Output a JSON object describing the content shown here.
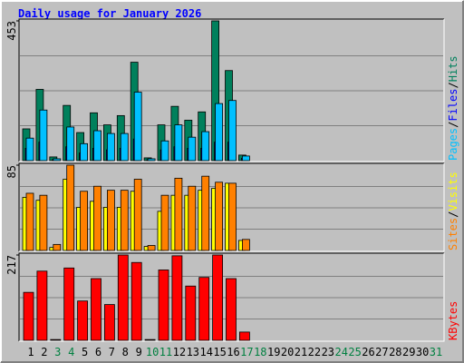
{
  "chart_data": [
    {
      "type": "bar",
      "title": "Daily usage for January 2026",
      "series": [
        {
          "name": "Hits",
          "color": "#00805c",
          "values": [
            103,
            231,
            12,
            179,
            91,
            155,
            116,
            146,
            319,
            9,
            116,
            176,
            131,
            158,
            453,
            292,
            18,
            null,
            null,
            null,
            null,
            null,
            null,
            null,
            null,
            null,
            null,
            null,
            null,
            null,
            null
          ]
        },
        {
          "name": "Files",
          "color": "#0000ff",
          "values": [
            40,
            60,
            3,
            45,
            25,
            40,
            35,
            40,
            70,
            3,
            35,
            45,
            40,
            40,
            60,
            60,
            8,
            null,
            null,
            null,
            null,
            null,
            null,
            null,
            null,
            null,
            null,
            null,
            null,
            null,
            null
          ]
        },
        {
          "name": "Pages",
          "color": "#00c0ff",
          "values": [
            73,
            164,
            6,
            109,
            55,
            97,
            88,
            88,
            222,
            6,
            64,
            116,
            76,
            94,
            185,
            195,
            15,
            null,
            null,
            null,
            null,
            null,
            null,
            null,
            null,
            null,
            null,
            null,
            null,
            null,
            null
          ]
        }
      ],
      "legend_separator": "/",
      "ylim": [
        0,
        453
      ],
      "yticks": [
        453
      ]
    },
    {
      "type": "bar",
      "series": [
        {
          "name": "Visits",
          "color": "#ffff00",
          "values": [
            53,
            50,
            3,
            71,
            43,
            49,
            43,
            43,
            59,
            4,
            39,
            55,
            55,
            60,
            62,
            67,
            10,
            null,
            null,
            null,
            null,
            null,
            null,
            null,
            null,
            null,
            null,
            null,
            null,
            null,
            null
          ]
        },
        {
          "name": "Sites",
          "color": "#ff8000",
          "values": [
            57,
            55,
            6,
            85,
            59,
            64,
            60,
            60,
            71,
            5,
            55,
            72,
            64,
            74,
            68,
            67,
            11,
            null,
            null,
            null,
            null,
            null,
            null,
            null,
            null,
            null,
            null,
            null,
            null,
            null,
            null
          ]
        }
      ],
      "legend_separator": "/",
      "ylim": [
        0,
        85
      ],
      "yticks": [
        85
      ]
    },
    {
      "type": "bar",
      "categories": [
        "1",
        "2",
        "3",
        "4",
        "5",
        "6",
        "7",
        "8",
        "9",
        "10",
        "11",
        "12",
        "13",
        "14",
        "15",
        "16",
        "17",
        "18",
        "19",
        "20",
        "21",
        "22",
        "23",
        "24",
        "25",
        "26",
        "27",
        "28",
        "29",
        "30",
        "31"
      ],
      "category_colors": [
        "#000000",
        "#000000",
        "#008040",
        "#008040",
        "#000000",
        "#000000",
        "#000000",
        "#000000",
        "#000000",
        "#008040",
        "#008040",
        "#000000",
        "#000000",
        "#000000",
        "#000000",
        "#000000",
        "#008040",
        "#008040",
        "#000000",
        "#000000",
        "#000000",
        "#000000",
        "#000000",
        "#008040",
        "#008040",
        "#000000",
        "#000000",
        "#000000",
        "#000000",
        "#000000",
        "#008040"
      ],
      "series": [
        {
          "name": "KBytes",
          "color": "#ff0000",
          "values": [
            122,
            176,
            2,
            184,
            100,
            157,
            91,
            217,
            198,
            2,
            179,
            215,
            138,
            160,
            217,
            157,
            21,
            null,
            null,
            null,
            null,
            null,
            null,
            null,
            null,
            null,
            null,
            null,
            null,
            null,
            null
          ]
        }
      ],
      "ylim": [
        0,
        217
      ],
      "yticks": [
        217
      ]
    }
  ]
}
